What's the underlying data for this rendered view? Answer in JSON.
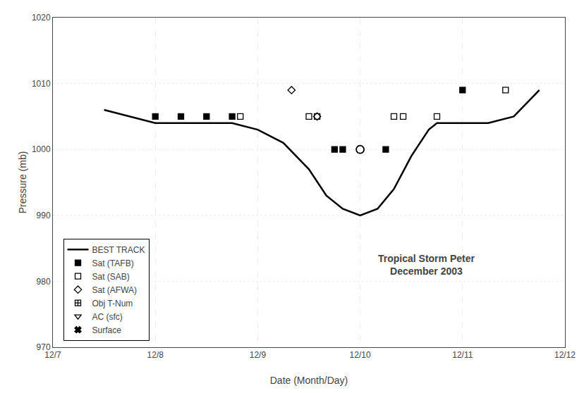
{
  "chart_data": {
    "type": "line",
    "title": "Tropical Storm Peter",
    "subtitle": "December 2003",
    "xlabel": "Date (Month/Day)",
    "ylabel": "Pressure (mb)",
    "xlim": [
      7.0,
      12.0
    ],
    "ylim": [
      970,
      1020
    ],
    "xticks": [
      {
        "value": 7,
        "label": "12/7"
      },
      {
        "value": 8,
        "label": "12/8"
      },
      {
        "value": 9,
        "label": "12/9"
      },
      {
        "value": 10,
        "label": "12/10"
      },
      {
        "value": 11,
        "label": "12/11"
      },
      {
        "value": 12,
        "label": "12/12"
      }
    ],
    "yticks": [
      970,
      980,
      990,
      1000,
      1010,
      1020
    ],
    "grid": true,
    "legend": "lower left",
    "series": [
      {
        "name": "BEST TRACK",
        "type": "line",
        "line_style": "solid",
        "color": "#000000",
        "x": [
          7.5,
          7.75,
          8.0,
          8.25,
          8.5,
          8.75,
          9.0,
          9.25,
          9.5,
          9.67,
          9.83,
          10.0,
          10.17,
          10.33,
          10.5,
          10.67,
          10.75,
          11.0,
          11.25,
          11.5,
          11.75
        ],
        "values": [
          1006,
          1005,
          1004,
          1004,
          1004,
          1004,
          1003,
          1001,
          997,
          993,
          991,
          990,
          991,
          994,
          999,
          1003,
          1004,
          1004,
          1004,
          1005,
          1009
        ]
      },
      {
        "name": "Sat (TAFB)",
        "type": "scatter",
        "marker": "square",
        "color": "#000000",
        "x": [
          8.0,
          8.25,
          8.5,
          8.75,
          9.75,
          9.83,
          10.25,
          11.0
        ],
        "values": [
          1005,
          1005,
          1005,
          1005,
          1000,
          1000,
          1000,
          1009
        ]
      },
      {
        "name": "Sat (SAB)",
        "type": "scatter",
        "marker": "square-open",
        "color": "#000000",
        "x": [
          8.83,
          9.5,
          9.58,
          10.33,
          10.42,
          10.75,
          11.42
        ],
        "values": [
          1005,
          1005,
          1005,
          1005,
          1005,
          1005,
          1009
        ]
      },
      {
        "name": "Sat (AFWA)",
        "type": "scatter",
        "marker": "diamond-open",
        "color": "#000000",
        "x": [
          9.33,
          9.58
        ],
        "values": [
          1009,
          1005
        ]
      },
      {
        "name": "Obj T-Num",
        "type": "scatter",
        "marker": "square-cross-open",
        "color": "#000000",
        "x": [],
        "values": []
      },
      {
        "name": "AC (sfc)",
        "type": "scatter",
        "marker": "triangle-down-open",
        "color": "#000000",
        "x": [],
        "values": []
      },
      {
        "name": "Surface",
        "type": "scatter",
        "marker": "x",
        "color": "#000000",
        "x": [],
        "values": []
      },
      {
        "type": "scatter",
        "marker": "circle-open",
        "color": "#000000",
        "x": [
          10.0
        ],
        "values": [
          1000
        ]
      }
    ]
  }
}
